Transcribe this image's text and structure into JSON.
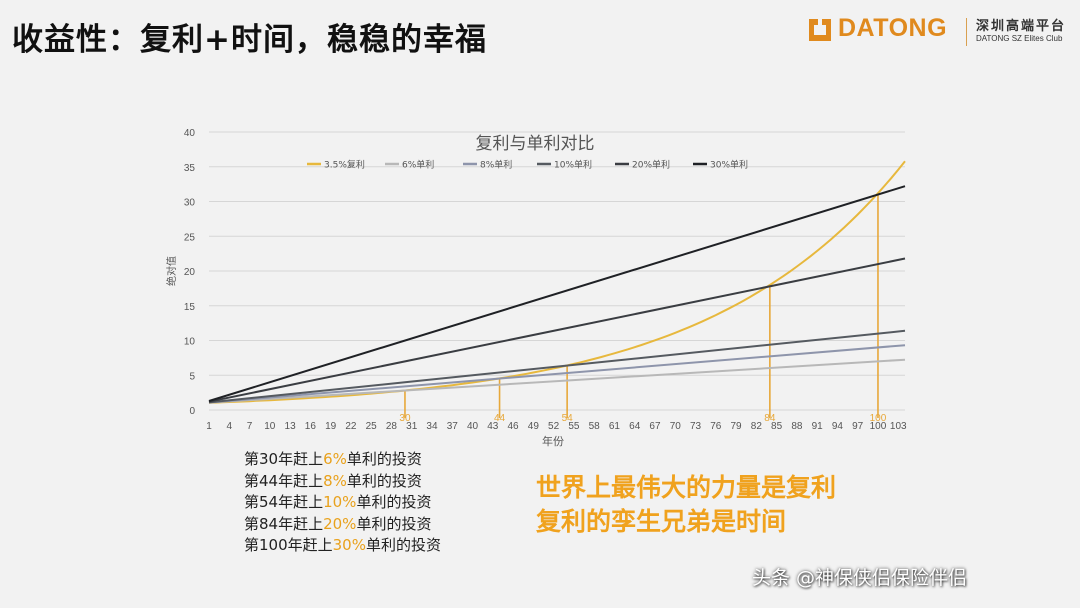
{
  "slide": {
    "title": "收益性：复利+时间，稳稳的幸福"
  },
  "logo": {
    "brand": "DATONG",
    "cn_name": "深圳高端平台",
    "en_name": "DATONG SZ Elites Club",
    "color": "#e08a1e"
  },
  "chart_data": {
    "type": "line",
    "title": "复利与单利对比",
    "xlabel": "年份",
    "ylabel": "绝对值",
    "xlim": [
      1,
      104
    ],
    "ylim": [
      0,
      40
    ],
    "yticks": [
      0,
      5,
      10,
      15,
      20,
      25,
      30,
      35,
      40
    ],
    "xticks": [
      1,
      4,
      7,
      10,
      13,
      16,
      19,
      22,
      25,
      28,
      31,
      34,
      37,
      40,
      43,
      46,
      49,
      52,
      55,
      58,
      61,
      64,
      67,
      70,
      73,
      76,
      79,
      82,
      85,
      88,
      91,
      94,
      97,
      100,
      103
    ],
    "grid": true,
    "legend": "top",
    "series": [
      {
        "name": "3.5%复利",
        "color": "#e7b83d",
        "x": [
          1,
          10,
          20,
          30,
          40,
          44,
          50,
          54,
          60,
          70,
          80,
          84,
          90,
          100,
          104
        ],
        "values": [
          1.04,
          1.41,
          1.99,
          2.81,
          3.96,
          4.54,
          5.58,
          6.4,
          7.88,
          11.1,
          15.7,
          18.0,
          22.1,
          31.2,
          35.9
        ]
      },
      {
        "name": "6%单利",
        "color": "#b8b8b8",
        "x": [
          1,
          104
        ],
        "values": [
          1.06,
          7.24
        ]
      },
      {
        "name": "8%单利",
        "color": "#8e95ab",
        "x": [
          1,
          104
        ],
        "values": [
          1.08,
          9.32
        ]
      },
      {
        "name": "10%单利",
        "color": "#555a60",
        "x": [
          1,
          104
        ],
        "values": [
          1.1,
          11.4
        ]
      },
      {
        "name": "20%单利",
        "color": "#3a3d42",
        "x": [
          1,
          104
        ],
        "values": [
          1.2,
          21.8
        ]
      },
      {
        "name": "30%单利",
        "color": "#1f2125",
        "x": [
          1,
          104
        ],
        "values": [
          1.3,
          32.2
        ]
      }
    ],
    "annotations": [
      {
        "label": "30",
        "year": 30,
        "color": "#e7a83a"
      },
      {
        "label": "44",
        "year": 44,
        "color": "#e7a83a"
      },
      {
        "label": "54",
        "year": 54,
        "color": "#e7a83a"
      },
      {
        "label": "84",
        "year": 84,
        "color": "#e7a83a"
      },
      {
        "label": "100",
        "year": 100,
        "color": "#e7a83a"
      }
    ]
  },
  "notes": [
    {
      "pre": "第30年赶上",
      "hl": "6%",
      "post": "单利的投资"
    },
    {
      "pre": "第44年赶上",
      "hl": "8%",
      "post": "单利的投资"
    },
    {
      "pre": "第54年赶上",
      "hl": "10%",
      "post": "单利的投资"
    },
    {
      "pre": "第84年赶上",
      "hl": "20%",
      "post": "单利的投资"
    },
    {
      "pre": "第100年赶上",
      "hl": "30%",
      "post": "单利的投资"
    }
  ],
  "slogan": {
    "line1": "世界上最伟大的力量是复利",
    "line2": "复利的孪生兄弟是时间"
  },
  "watermark": "头条 @神保侠侣保险伴侣"
}
